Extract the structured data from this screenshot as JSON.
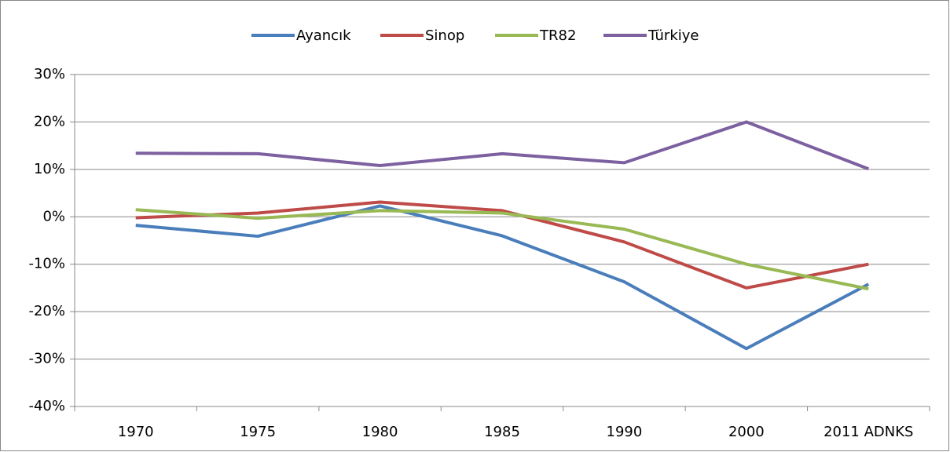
{
  "chart_data": {
    "type": "line",
    "categories": [
      "1970",
      "1975",
      "1980",
      "1985",
      "1990",
      "2000",
      "2011 ADNKS"
    ],
    "series": [
      {
        "name": "Ayancık",
        "color": "#4a7ebb",
        "values": [
          -1.8,
          -4.1,
          2.3,
          -4,
          -13.7,
          -27.8,
          -14.2
        ]
      },
      {
        "name": "Sinop",
        "color": "#be4b48",
        "values": [
          -0.2,
          0.8,
          3.1,
          1.3,
          -5.3,
          -15,
          -10
        ]
      },
      {
        "name": "TR82",
        "color": "#98b954",
        "values": [
          1.5,
          -0.3,
          1.3,
          0.8,
          -2.6,
          -10,
          -15.2
        ]
      },
      {
        "name": "Türkiye",
        "color": "#7d60a0",
        "values": [
          13.4,
          13.3,
          10.8,
          13.3,
          11.4,
          20,
          10.1
        ]
      }
    ],
    "ylim": [
      -40,
      30
    ],
    "yticks": [
      {
        "value": -40,
        "label": "-40%"
      },
      {
        "value": -30,
        "label": "-30%"
      },
      {
        "value": -20,
        "label": "-20%"
      },
      {
        "value": -10,
        "label": "-10%"
      },
      {
        "value": 0,
        "label": "0%"
      },
      {
        "value": 10,
        "label": "10%"
      },
      {
        "value": 20,
        "label": "20%"
      },
      {
        "value": 30,
        "label": "30%"
      }
    ],
    "grid": true,
    "legend": "top"
  }
}
